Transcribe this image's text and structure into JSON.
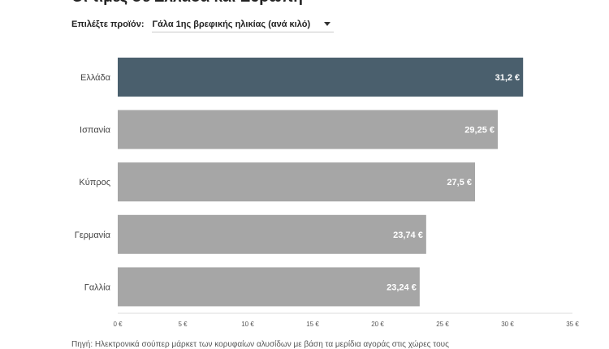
{
  "header": {
    "title": "Οι τιμές σε Ελλάδα και Ευρώπη"
  },
  "selector": {
    "label": "Επιλέξτε προϊόν:",
    "value": "Γάλα 1ης βρεφικής ηλικίας (ανά κιλό)",
    "icon": "chevron-down-icon"
  },
  "chart_data": {
    "type": "bar",
    "orientation": "horizontal",
    "categories": [
      "Ελλάδα",
      "Ισπανία",
      "Κύπρος",
      "Γερμανία",
      "Γαλλία"
    ],
    "values": [
      31.2,
      29.25,
      27.5,
      23.74,
      23.24
    ],
    "value_labels": [
      "31,2 €",
      "29,25 €",
      "27,5 €",
      "23,74 €",
      "23,24 €"
    ],
    "xlim": [
      0,
      35
    ],
    "x_ticks": [
      0,
      5,
      10,
      15,
      20,
      25,
      30,
      35
    ],
    "x_tick_labels": [
      "0 €",
      "5 €",
      "10 €",
      "15 €",
      "20 €",
      "25 €",
      "30 €",
      "35 €"
    ],
    "colors": {
      "highlight": "#4a5f6d",
      "default": "#a6a6a6"
    },
    "highlight_index": 0,
    "grid": false
  },
  "footer": {
    "source": "Πηγή: Ηλεκτρονικά σούπερ μάρκετ των κορυφαίων αλυσίδων με βάση τα μερίδια αγοράς στις χώρες τους"
  }
}
